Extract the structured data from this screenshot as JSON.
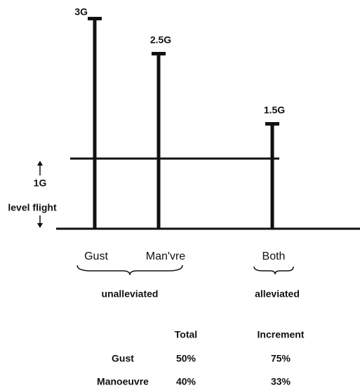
{
  "chart_data": {
    "type": "bar",
    "categories": [
      "Gust",
      "Man'vre",
      "Both"
    ],
    "values": [
      3,
      2.5,
      1.5
    ],
    "value_labels": [
      "3G",
      "2.5G",
      "1.5G"
    ],
    "reference": {
      "value": 1,
      "label": "1G",
      "note": "level flight"
    },
    "groups": [
      "unalleviated",
      "alleviated"
    ],
    "color": "#111111"
  },
  "table": {
    "header": [
      "Total",
      "Increment"
    ],
    "rows": [
      [
        "Gust",
        "50%",
        "75%"
      ],
      [
        "Manoeuvre",
        "40%",
        "33%"
      ]
    ]
  }
}
